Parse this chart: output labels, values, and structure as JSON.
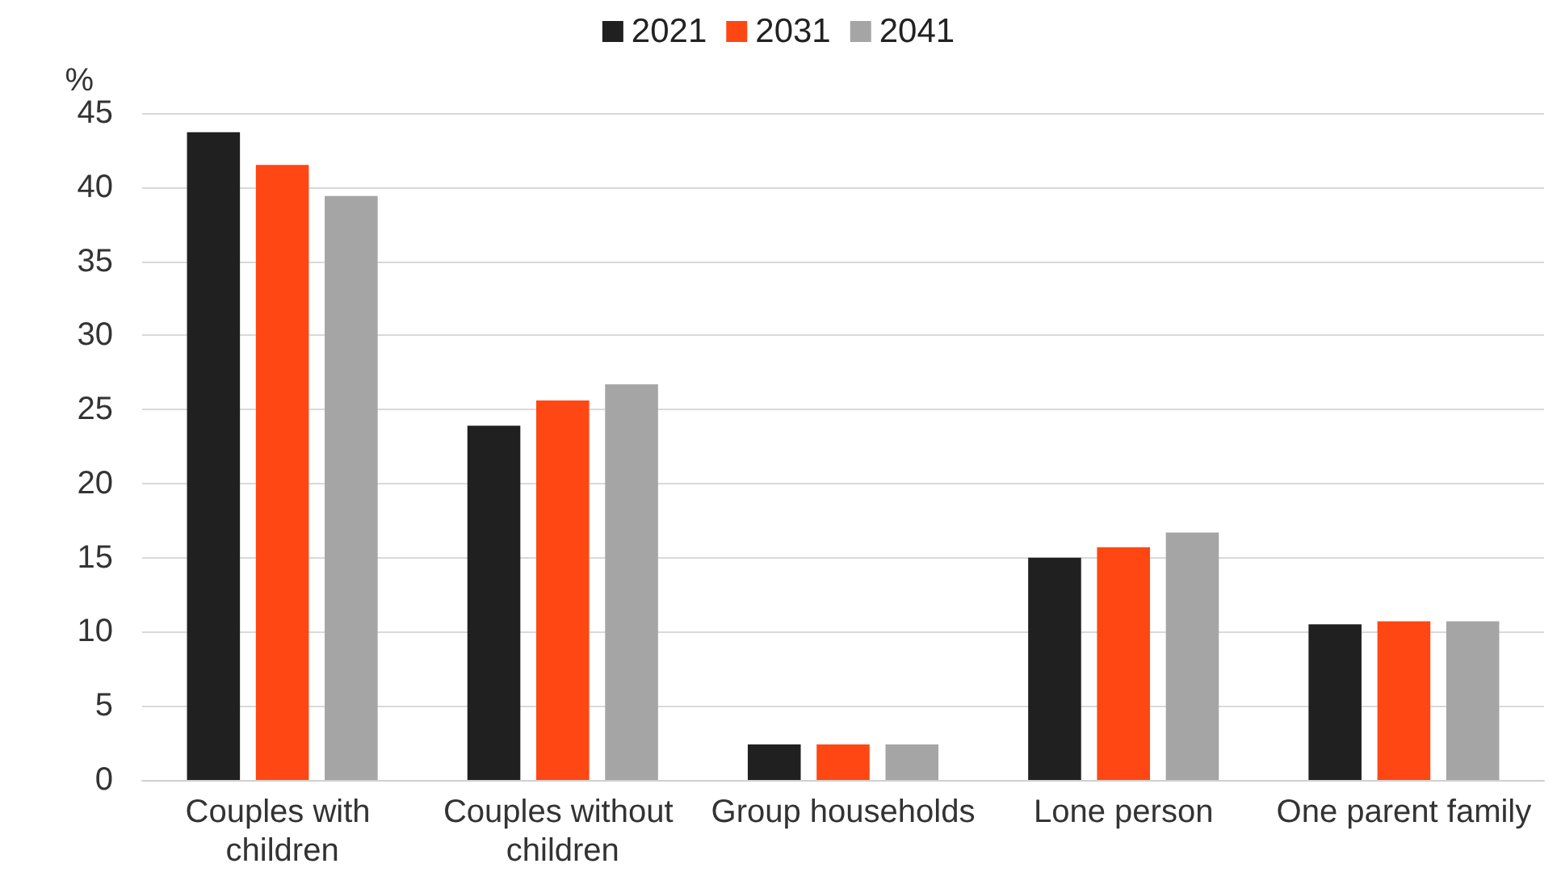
{
  "chart_data": {
    "type": "bar",
    "ylabel": "%",
    "categories": [
      "Couples with children",
      "Couples without children",
      "Group households",
      "Lone person",
      "One parent family"
    ],
    "series": [
      {
        "name": "2021",
        "color": "#202020",
        "values": [
          43.7,
          23.9,
          2.4,
          15.0,
          10.5
        ]
      },
      {
        "name": "2031",
        "color": "#ff4713",
        "values": [
          41.5,
          25.6,
          2.4,
          15.7,
          10.7
        ]
      },
      {
        "name": "2041",
        "color": "#a5a5a5",
        "values": [
          39.4,
          26.7,
          2.4,
          16.7,
          10.7
        ]
      }
    ],
    "ylim": [
      0,
      45
    ],
    "yticks": [
      0,
      5,
      10,
      15,
      20,
      25,
      30,
      35,
      40,
      45
    ],
    "grid": "y",
    "legend": "top"
  }
}
